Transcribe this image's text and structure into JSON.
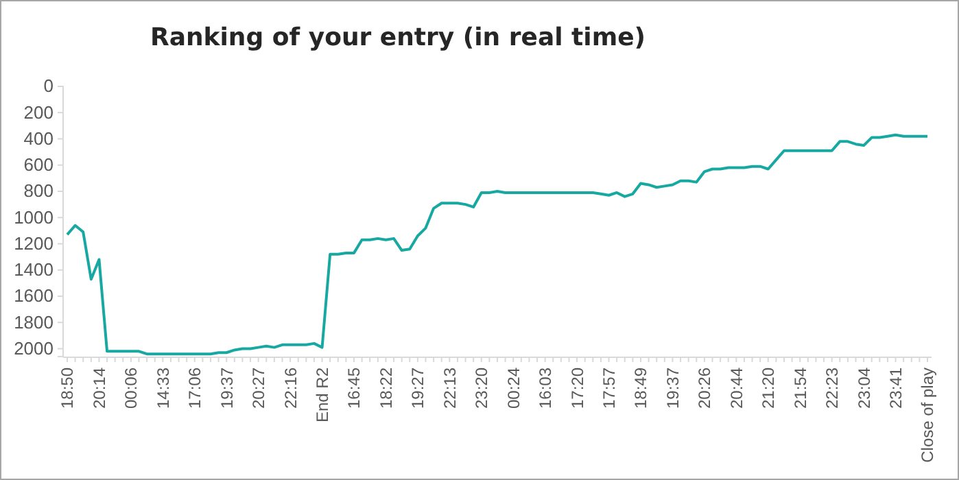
{
  "chart_data": {
    "type": "line",
    "title": "Ranking of your entry (in real time)",
    "categories": [
      "18:50",
      null,
      null,
      null,
      "20:14",
      null,
      null,
      null,
      "00:06",
      null,
      null,
      null,
      "14:33",
      null,
      null,
      null,
      "17:06",
      null,
      null,
      null,
      "19:37",
      null,
      null,
      null,
      "20:27",
      null,
      null,
      null,
      "22:16",
      null,
      null,
      null,
      "End R2",
      null,
      null,
      null,
      "16:45",
      null,
      null,
      null,
      "18:22",
      null,
      null,
      null,
      "19:27",
      null,
      null,
      null,
      "22:13",
      null,
      null,
      null,
      "23:20",
      null,
      null,
      null,
      "00:24",
      null,
      null,
      null,
      "16:03",
      null,
      null,
      null,
      "17:20",
      null,
      null,
      null,
      "17:57",
      null,
      null,
      null,
      "18:49",
      null,
      null,
      null,
      "19:37",
      null,
      null,
      null,
      "20:26",
      null,
      null,
      null,
      "20:44",
      null,
      null,
      null,
      "21:20",
      null,
      null,
      null,
      "21:54",
      null,
      null,
      null,
      "22:23",
      null,
      null,
      null,
      "23:04",
      null,
      null,
      null,
      "23:41",
      null,
      null,
      null,
      "Close of play"
    ],
    "series": [
      {
        "color": "#17a9a1",
        "values": [
          1130,
          1060,
          1110,
          1470,
          1320,
          2020,
          2020,
          2020,
          2020,
          2020,
          2040,
          2040,
          2040,
          2040,
          2040,
          2040,
          2040,
          2040,
          2040,
          2030,
          2030,
          2010,
          2000,
          2000,
          1990,
          1980,
          1990,
          1970,
          1970,
          1970,
          1970,
          1960,
          1990,
          1280,
          1280,
          1270,
          1270,
          1170,
          1170,
          1160,
          1170,
          1160,
          1250,
          1240,
          1140,
          1080,
          930,
          890,
          890,
          890,
          900,
          920,
          810,
          810,
          800,
          810,
          810,
          810,
          810,
          810,
          810,
          810,
          810,
          810,
          810,
          810,
          810,
          820,
          830,
          810,
          840,
          820,
          740,
          750,
          770,
          760,
          750,
          720,
          720,
          730,
          650,
          630,
          630,
          620,
          620,
          620,
          610,
          610,
          630,
          560,
          490,
          490,
          490,
          490,
          490,
          490,
          490,
          420,
          420,
          440,
          450,
          390,
          390,
          380,
          370,
          380,
          380,
          380,
          380
        ]
      }
    ],
    "ylim": [
      2060,
      0
    ],
    "yticks": [
      0,
      200,
      400,
      600,
      800,
      1000,
      1200,
      1400,
      1600,
      1800,
      2000
    ],
    "grid": false,
    "marker": "none",
    "line_style": "solid"
  }
}
